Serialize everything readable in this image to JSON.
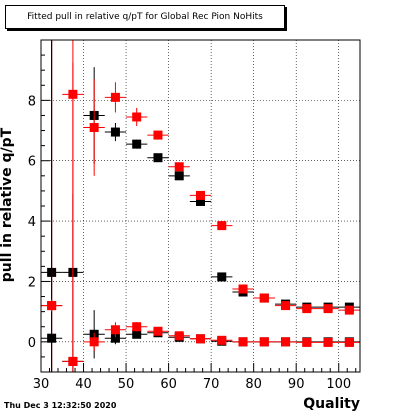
{
  "title": "Fitted pull in relative q/pT for Global Rec Pion NoHits",
  "datestamp": "Thu Dec  3 12:32:50 2020",
  "chart_data": {
    "type": "scatter",
    "title": "Fitted pull in relative q/pT for Global Rec Pion NoHits",
    "xlabel": "Quality",
    "ylabel": "pull in relative q/pT",
    "xlim": [
      30,
      105
    ],
    "ylim": [
      -1,
      10
    ],
    "xticks": [
      30,
      40,
      50,
      60,
      70,
      80,
      90,
      100
    ],
    "yticks": [
      0,
      2,
      4,
      6,
      8
    ],
    "grid": true,
    "series": [
      {
        "color": "#000000",
        "points": [
          {
            "x": 32.5,
            "y": 2.3,
            "yerr": 9.9
          },
          {
            "x": 37.5,
            "y": 2.3,
            "yerr": 2.6
          },
          {
            "x": 42.5,
            "y": 7.5,
            "yerr": 1.6
          },
          {
            "x": 47.5,
            "y": 6.95,
            "yerr": 0.3
          },
          {
            "x": 52.5,
            "y": 6.55,
            "yerr": 0.15
          },
          {
            "x": 57.5,
            "y": 6.1,
            "yerr": 0.1
          },
          {
            "x": 62.5,
            "y": 5.5,
            "yerr": 0.1
          },
          {
            "x": 67.5,
            "y": 4.65,
            "yerr": 0.1
          },
          {
            "x": 72.5,
            "y": 2.15,
            "yerr": 0.08
          },
          {
            "x": 77.5,
            "y": 1.65,
            "yerr": 0.06
          },
          {
            "x": 82.5,
            "y": 1.45,
            "yerr": 0.05
          },
          {
            "x": 87.5,
            "y": 1.25,
            "yerr": 0.05
          },
          {
            "x": 92.5,
            "y": 1.15,
            "yerr": 0.05
          },
          {
            "x": 97.5,
            "y": 1.15,
            "yerr": 0.05
          },
          {
            "x": 102.5,
            "y": 1.15,
            "yerr": 0.05
          }
        ]
      },
      {
        "color": "#ff0000",
        "points": [
          {
            "x": 32.5,
            "y": 1.2,
            "yerr": 9.9
          },
          {
            "x": 37.5,
            "y": 8.2,
            "yerr": 9.9
          },
          {
            "x": 42.5,
            "y": 7.1,
            "yerr": 1.6
          },
          {
            "x": 47.5,
            "y": 8.1,
            "yerr": 0.5
          },
          {
            "x": 52.5,
            "y": 7.45,
            "yerr": 0.3
          },
          {
            "x": 57.5,
            "y": 6.85,
            "yerr": 0.15
          },
          {
            "x": 62.5,
            "y": 5.8,
            "yerr": 0.12
          },
          {
            "x": 67.5,
            "y": 4.85,
            "yerr": 0.1
          },
          {
            "x": 72.5,
            "y": 3.85,
            "yerr": 0.08
          },
          {
            "x": 77.5,
            "y": 1.75,
            "yerr": 0.06
          },
          {
            "x": 82.5,
            "y": 1.45,
            "yerr": 0.05
          },
          {
            "x": 87.5,
            "y": 1.2,
            "yerr": 0.05
          },
          {
            "x": 92.5,
            "y": 1.1,
            "yerr": 0.05
          },
          {
            "x": 97.5,
            "y": 1.1,
            "yerr": 0.05
          },
          {
            "x": 102.5,
            "y": 1.05,
            "yerr": 0.05
          }
        ]
      },
      {
        "color": "#000000",
        "points": [
          {
            "x": 32.5,
            "y": 0.12,
            "yerr": 9.9
          },
          {
            "x": 37.5,
            "y": -0.65,
            "yerr": 0.4
          },
          {
            "x": 42.5,
            "y": 0.25,
            "yerr": 0.8
          },
          {
            "x": 47.5,
            "y": 0.12,
            "yerr": 0.2
          },
          {
            "x": 52.5,
            "y": 0.25,
            "yerr": 0.1
          },
          {
            "x": 57.5,
            "y": 0.3,
            "yerr": 0.08
          },
          {
            "x": 62.5,
            "y": 0.15,
            "yerr": 0.05
          },
          {
            "x": 67.5,
            "y": 0.1,
            "yerr": 0.04
          },
          {
            "x": 72.5,
            "y": 0.02,
            "yerr": 0.03
          },
          {
            "x": 77.5,
            "y": 0.0,
            "yerr": 0.02
          },
          {
            "x": 82.5,
            "y": 0.0,
            "yerr": 0.02
          },
          {
            "x": 87.5,
            "y": 0.0,
            "yerr": 0.02
          },
          {
            "x": 92.5,
            "y": 0.0,
            "yerr": 0.02
          },
          {
            "x": 97.5,
            "y": 0.0,
            "yerr": 0.02
          },
          {
            "x": 102.5,
            "y": 0.0,
            "yerr": 0.02
          }
        ]
      },
      {
        "color": "#ff0000",
        "points": [
          {
            "x": 32.5,
            "y": 1.2,
            "yerr": 0.2
          },
          {
            "x": 37.5,
            "y": -0.65,
            "yerr": 9.9
          },
          {
            "x": 42.5,
            "y": 0.0,
            "yerr": 0.3
          },
          {
            "x": 47.5,
            "y": 0.4,
            "yerr": 0.25
          },
          {
            "x": 52.5,
            "y": 0.5,
            "yerr": 0.15
          },
          {
            "x": 57.5,
            "y": 0.35,
            "yerr": 0.08
          },
          {
            "x": 62.5,
            "y": 0.2,
            "yerr": 0.05
          },
          {
            "x": 67.5,
            "y": 0.1,
            "yerr": 0.04
          },
          {
            "x": 72.5,
            "y": 0.05,
            "yerr": 0.03
          },
          {
            "x": 77.5,
            "y": 0.0,
            "yerr": 0.02
          },
          {
            "x": 82.5,
            "y": 0.0,
            "yerr": 0.02
          },
          {
            "x": 87.5,
            "y": 0.0,
            "yerr": 0.02
          },
          {
            "x": 92.5,
            "y": -0.02,
            "yerr": 0.02
          },
          {
            "x": 97.5,
            "y": -0.02,
            "yerr": 0.02
          },
          {
            "x": 102.5,
            "y": -0.02,
            "yerr": 0.02
          }
        ]
      }
    ]
  }
}
